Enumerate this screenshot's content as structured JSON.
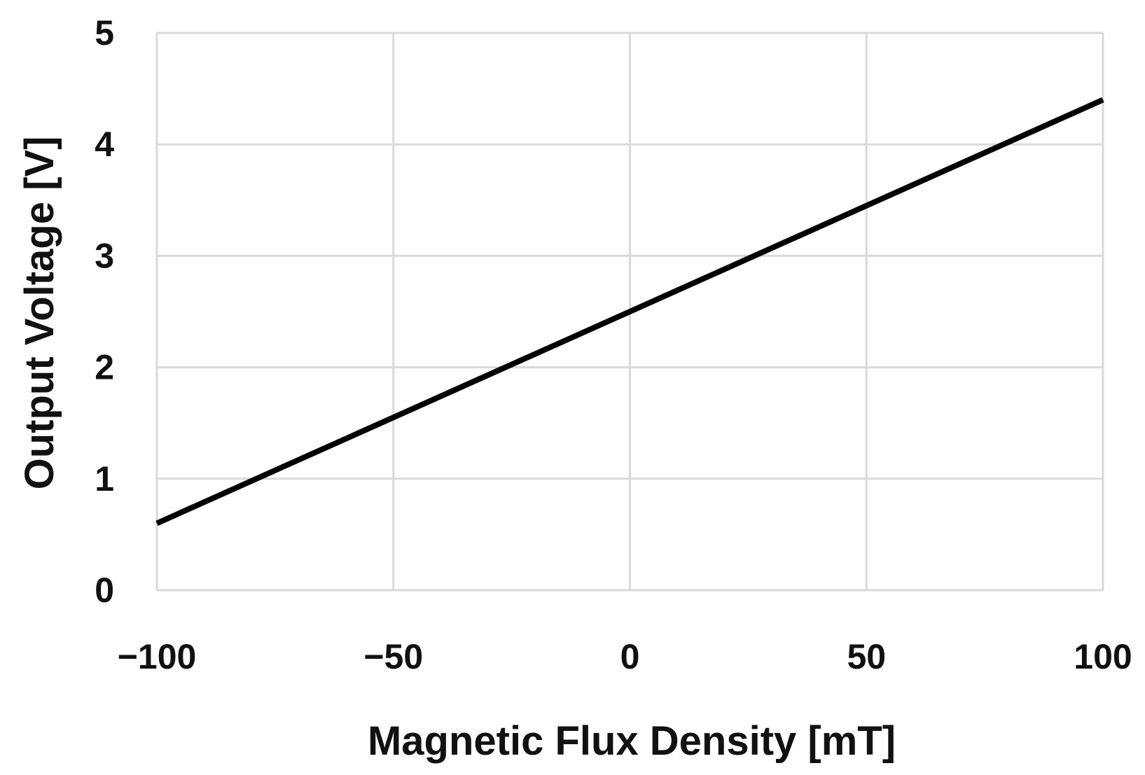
{
  "chart_data": {
    "type": "line",
    "title": "",
    "xlabel": "Magnetic Flux Density [mT]",
    "ylabel": "Output Voltage [V]",
    "xlim": [
      -100,
      100
    ],
    "ylim": [
      0,
      5
    ],
    "x_ticks": [
      -100,
      -50,
      0,
      50,
      100
    ],
    "x_tick_labels": [
      "−100",
      "−50",
      "0",
      "50",
      "100"
    ],
    "y_ticks": [
      0,
      1,
      2,
      3,
      4,
      5
    ],
    "y_tick_labels": [
      "0",
      "1",
      "2",
      "3",
      "4",
      "5"
    ],
    "grid": true,
    "legend": "none",
    "series": [
      {
        "x": [
          -100,
          100
        ],
        "y": [
          0.6,
          4.4
        ],
        "color": "#000000"
      }
    ],
    "colors": {
      "grid": "#d9d9d9",
      "line": "#000000",
      "text": "#111111"
    }
  }
}
